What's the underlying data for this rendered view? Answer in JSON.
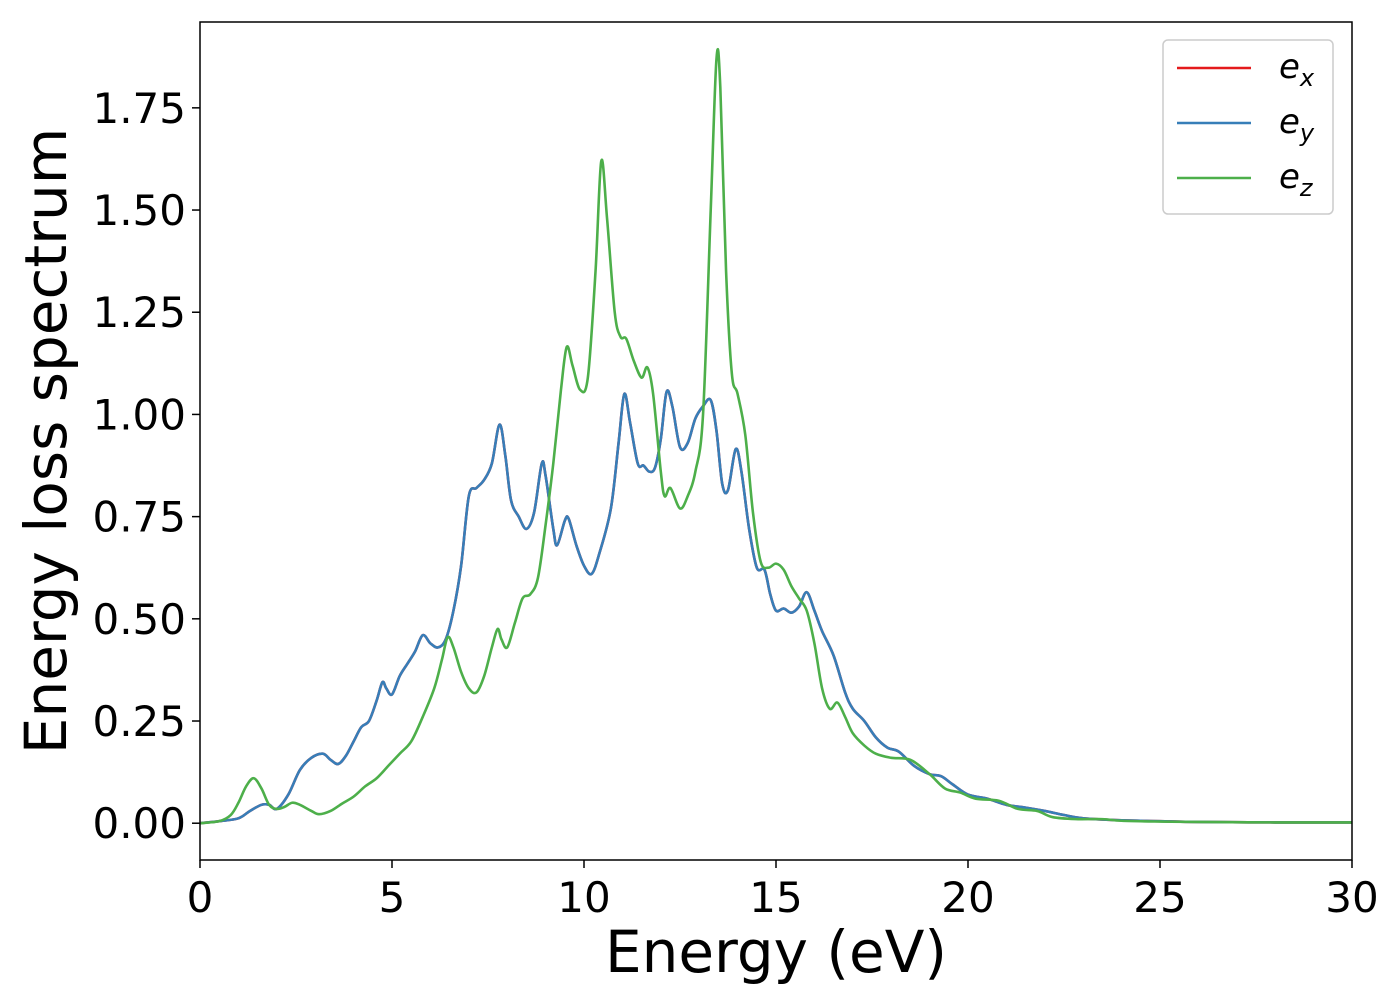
{
  "chart_data": {
    "type": "line",
    "title": "",
    "xlabel": "Energy (eV)",
    "ylabel": "Energy loss spectrum",
    "xlim": [
      0,
      30
    ],
    "ylim": [
      -0.09,
      1.96
    ],
    "xticks": [
      0,
      5,
      10,
      15,
      20,
      25,
      30
    ],
    "xtick_labels": [
      "0",
      "5",
      "10",
      "15",
      "20",
      "25",
      "30"
    ],
    "yticks": [
      0.0,
      0.25,
      0.5,
      0.75,
      1.0,
      1.25,
      1.5,
      1.75
    ],
    "ytick_labels": [
      "0.00",
      "0.25",
      "0.50",
      "0.75",
      "1.00",
      "1.25",
      "1.50",
      "1.75"
    ],
    "grid": false,
    "legend_position": "top-right",
    "series": [
      {
        "name": "e_x",
        "label_base": "e",
        "label_sub": "x",
        "color": "#e41a1c",
        "points": [
          [
            0,
            0
          ],
          [
            0.5,
            0.005
          ],
          [
            1.0,
            0.012
          ],
          [
            1.3,
            0.03
          ],
          [
            1.6,
            0.045
          ],
          [
            1.8,
            0.045
          ],
          [
            2.0,
            0.035
          ],
          [
            2.3,
            0.07
          ],
          [
            2.6,
            0.13
          ],
          [
            2.9,
            0.16
          ],
          [
            3.2,
            0.17
          ],
          [
            3.4,
            0.155
          ],
          [
            3.6,
            0.145
          ],
          [
            3.8,
            0.165
          ],
          [
            4.0,
            0.2
          ],
          [
            4.2,
            0.235
          ],
          [
            4.4,
            0.25
          ],
          [
            4.6,
            0.3
          ],
          [
            4.75,
            0.345
          ],
          [
            4.85,
            0.33
          ],
          [
            5.0,
            0.315
          ],
          [
            5.2,
            0.36
          ],
          [
            5.4,
            0.39
          ],
          [
            5.6,
            0.42
          ],
          [
            5.8,
            0.46
          ],
          [
            6.0,
            0.44
          ],
          [
            6.2,
            0.43
          ],
          [
            6.4,
            0.45
          ],
          [
            6.6,
            0.52
          ],
          [
            6.8,
            0.63
          ],
          [
            7.0,
            0.8
          ],
          [
            7.2,
            0.82
          ],
          [
            7.4,
            0.84
          ],
          [
            7.6,
            0.88
          ],
          [
            7.8,
            0.975
          ],
          [
            7.95,
            0.9
          ],
          [
            8.1,
            0.79
          ],
          [
            8.3,
            0.75
          ],
          [
            8.5,
            0.72
          ],
          [
            8.7,
            0.76
          ],
          [
            8.9,
            0.88
          ],
          [
            9.0,
            0.85
          ],
          [
            9.2,
            0.72
          ],
          [
            9.3,
            0.68
          ],
          [
            9.5,
            0.74
          ],
          [
            9.6,
            0.745
          ],
          [
            9.8,
            0.68
          ],
          [
            10.0,
            0.63
          ],
          [
            10.2,
            0.61
          ],
          [
            10.4,
            0.66
          ],
          [
            10.7,
            0.77
          ],
          [
            10.9,
            0.93
          ],
          [
            11.05,
            1.05
          ],
          [
            11.2,
            0.98
          ],
          [
            11.4,
            0.88
          ],
          [
            11.55,
            0.875
          ],
          [
            11.7,
            0.86
          ],
          [
            11.85,
            0.87
          ],
          [
            12.0,
            0.94
          ],
          [
            12.15,
            1.055
          ],
          [
            12.3,
            1.02
          ],
          [
            12.5,
            0.92
          ],
          [
            12.7,
            0.93
          ],
          [
            12.9,
            0.99
          ],
          [
            13.1,
            1.02
          ],
          [
            13.3,
            1.035
          ],
          [
            13.45,
            0.96
          ],
          [
            13.6,
            0.83
          ],
          [
            13.75,
            0.815
          ],
          [
            13.95,
            0.915
          ],
          [
            14.1,
            0.86
          ],
          [
            14.3,
            0.72
          ],
          [
            14.5,
            0.625
          ],
          [
            14.7,
            0.62
          ],
          [
            14.85,
            0.56
          ],
          [
            15.0,
            0.52
          ],
          [
            15.2,
            0.525
          ],
          [
            15.4,
            0.515
          ],
          [
            15.6,
            0.53
          ],
          [
            15.8,
            0.565
          ],
          [
            16.0,
            0.52
          ],
          [
            16.2,
            0.47
          ],
          [
            16.5,
            0.41
          ],
          [
            16.8,
            0.32
          ],
          [
            17.0,
            0.28
          ],
          [
            17.3,
            0.25
          ],
          [
            17.6,
            0.21
          ],
          [
            17.9,
            0.185
          ],
          [
            18.2,
            0.175
          ],
          [
            18.6,
            0.14
          ],
          [
            19.0,
            0.12
          ],
          [
            19.3,
            0.115
          ],
          [
            19.6,
            0.095
          ],
          [
            20.0,
            0.07
          ],
          [
            20.5,
            0.06
          ],
          [
            21.0,
            0.045
          ],
          [
            21.5,
            0.038
          ],
          [
            22.0,
            0.03
          ],
          [
            22.5,
            0.02
          ],
          [
            23.0,
            0.012
          ],
          [
            24.0,
            0.007
          ],
          [
            25.0,
            0.005
          ],
          [
            26.0,
            0.003
          ],
          [
            28.0,
            0.002
          ],
          [
            30.0,
            0.002
          ]
        ]
      },
      {
        "name": "e_y",
        "label_base": "e",
        "label_sub": "y",
        "color": "#377eb8",
        "points": [
          [
            0,
            0
          ],
          [
            0.5,
            0.005
          ],
          [
            1.0,
            0.012
          ],
          [
            1.3,
            0.03
          ],
          [
            1.6,
            0.045
          ],
          [
            1.8,
            0.045
          ],
          [
            2.0,
            0.035
          ],
          [
            2.3,
            0.07
          ],
          [
            2.6,
            0.13
          ],
          [
            2.9,
            0.16
          ],
          [
            3.2,
            0.17
          ],
          [
            3.4,
            0.155
          ],
          [
            3.6,
            0.145
          ],
          [
            3.8,
            0.165
          ],
          [
            4.0,
            0.2
          ],
          [
            4.2,
            0.235
          ],
          [
            4.4,
            0.25
          ],
          [
            4.6,
            0.3
          ],
          [
            4.75,
            0.345
          ],
          [
            4.85,
            0.33
          ],
          [
            5.0,
            0.315
          ],
          [
            5.2,
            0.36
          ],
          [
            5.4,
            0.39
          ],
          [
            5.6,
            0.42
          ],
          [
            5.8,
            0.46
          ],
          [
            6.0,
            0.44
          ],
          [
            6.2,
            0.43
          ],
          [
            6.4,
            0.45
          ],
          [
            6.6,
            0.52
          ],
          [
            6.8,
            0.63
          ],
          [
            7.0,
            0.8
          ],
          [
            7.2,
            0.82
          ],
          [
            7.4,
            0.84
          ],
          [
            7.6,
            0.88
          ],
          [
            7.8,
            0.975
          ],
          [
            7.95,
            0.9
          ],
          [
            8.1,
            0.79
          ],
          [
            8.3,
            0.75
          ],
          [
            8.5,
            0.72
          ],
          [
            8.7,
            0.76
          ],
          [
            8.9,
            0.88
          ],
          [
            9.0,
            0.85
          ],
          [
            9.2,
            0.72
          ],
          [
            9.3,
            0.68
          ],
          [
            9.5,
            0.74
          ],
          [
            9.6,
            0.745
          ],
          [
            9.8,
            0.68
          ],
          [
            10.0,
            0.63
          ],
          [
            10.2,
            0.61
          ],
          [
            10.4,
            0.66
          ],
          [
            10.7,
            0.77
          ],
          [
            10.9,
            0.93
          ],
          [
            11.05,
            1.05
          ],
          [
            11.2,
            0.98
          ],
          [
            11.4,
            0.88
          ],
          [
            11.55,
            0.875
          ],
          [
            11.7,
            0.86
          ],
          [
            11.85,
            0.87
          ],
          [
            12.0,
            0.94
          ],
          [
            12.15,
            1.055
          ],
          [
            12.3,
            1.02
          ],
          [
            12.5,
            0.92
          ],
          [
            12.7,
            0.93
          ],
          [
            12.9,
            0.99
          ],
          [
            13.1,
            1.02
          ],
          [
            13.3,
            1.035
          ],
          [
            13.45,
            0.96
          ],
          [
            13.6,
            0.83
          ],
          [
            13.75,
            0.815
          ],
          [
            13.95,
            0.915
          ],
          [
            14.1,
            0.86
          ],
          [
            14.3,
            0.72
          ],
          [
            14.5,
            0.625
          ],
          [
            14.7,
            0.62
          ],
          [
            14.85,
            0.56
          ],
          [
            15.0,
            0.52
          ],
          [
            15.2,
            0.525
          ],
          [
            15.4,
            0.515
          ],
          [
            15.6,
            0.53
          ],
          [
            15.8,
            0.565
          ],
          [
            16.0,
            0.52
          ],
          [
            16.2,
            0.47
          ],
          [
            16.5,
            0.41
          ],
          [
            16.8,
            0.32
          ],
          [
            17.0,
            0.28
          ],
          [
            17.3,
            0.25
          ],
          [
            17.6,
            0.21
          ],
          [
            17.9,
            0.185
          ],
          [
            18.2,
            0.175
          ],
          [
            18.6,
            0.14
          ],
          [
            19.0,
            0.12
          ],
          [
            19.3,
            0.115
          ],
          [
            19.6,
            0.095
          ],
          [
            20.0,
            0.07
          ],
          [
            20.5,
            0.06
          ],
          [
            21.0,
            0.045
          ],
          [
            21.5,
            0.038
          ],
          [
            22.0,
            0.03
          ],
          [
            22.5,
            0.02
          ],
          [
            23.0,
            0.012
          ],
          [
            24.0,
            0.007
          ],
          [
            25.0,
            0.005
          ],
          [
            26.0,
            0.003
          ],
          [
            28.0,
            0.002
          ],
          [
            30.0,
            0.002
          ]
        ]
      },
      {
        "name": "e_z",
        "label_base": "e",
        "label_sub": "z",
        "color": "#4daf4a",
        "points": [
          [
            0,
            0
          ],
          [
            0.5,
            0.005
          ],
          [
            0.8,
            0.02
          ],
          [
            1.0,
            0.05
          ],
          [
            1.2,
            0.09
          ],
          [
            1.4,
            0.11
          ],
          [
            1.6,
            0.085
          ],
          [
            1.8,
            0.045
          ],
          [
            2.0,
            0.035
          ],
          [
            2.2,
            0.04
          ],
          [
            2.4,
            0.05
          ],
          [
            2.6,
            0.045
          ],
          [
            2.9,
            0.03
          ],
          [
            3.1,
            0.022
          ],
          [
            3.4,
            0.03
          ],
          [
            3.7,
            0.048
          ],
          [
            4.0,
            0.065
          ],
          [
            4.3,
            0.09
          ],
          [
            4.6,
            0.11
          ],
          [
            4.9,
            0.14
          ],
          [
            5.2,
            0.17
          ],
          [
            5.5,
            0.2
          ],
          [
            5.8,
            0.26
          ],
          [
            6.1,
            0.33
          ],
          [
            6.3,
            0.4
          ],
          [
            6.45,
            0.455
          ],
          [
            6.6,
            0.43
          ],
          [
            6.8,
            0.37
          ],
          [
            7.0,
            0.33
          ],
          [
            7.2,
            0.32
          ],
          [
            7.4,
            0.36
          ],
          [
            7.6,
            0.43
          ],
          [
            7.75,
            0.475
          ],
          [
            7.85,
            0.45
          ],
          [
            8.0,
            0.43
          ],
          [
            8.2,
            0.49
          ],
          [
            8.4,
            0.55
          ],
          [
            8.6,
            0.56
          ],
          [
            8.8,
            0.6
          ],
          [
            9.0,
            0.73
          ],
          [
            9.2,
            0.88
          ],
          [
            9.4,
            1.06
          ],
          [
            9.55,
            1.165
          ],
          [
            9.7,
            1.12
          ],
          [
            9.9,
            1.06
          ],
          [
            10.1,
            1.09
          ],
          [
            10.3,
            1.35
          ],
          [
            10.45,
            1.62
          ],
          [
            10.6,
            1.48
          ],
          [
            10.8,
            1.25
          ],
          [
            10.95,
            1.19
          ],
          [
            11.1,
            1.185
          ],
          [
            11.3,
            1.13
          ],
          [
            11.5,
            1.09
          ],
          [
            11.65,
            1.115
          ],
          [
            11.8,
            1.05
          ],
          [
            12.0,
            0.86
          ],
          [
            12.1,
            0.8
          ],
          [
            12.25,
            0.82
          ],
          [
            12.5,
            0.77
          ],
          [
            12.7,
            0.8
          ],
          [
            12.9,
            0.86
          ],
          [
            13.1,
            1.0
          ],
          [
            13.3,
            1.5
          ],
          [
            13.45,
            1.87
          ],
          [
            13.55,
            1.8
          ],
          [
            13.7,
            1.35
          ],
          [
            13.85,
            1.1
          ],
          [
            14.0,
            1.05
          ],
          [
            14.2,
            0.95
          ],
          [
            14.4,
            0.76
          ],
          [
            14.6,
            0.64
          ],
          [
            14.8,
            0.625
          ],
          [
            15.0,
            0.635
          ],
          [
            15.2,
            0.62
          ],
          [
            15.4,
            0.58
          ],
          [
            15.6,
            0.55
          ],
          [
            15.8,
            0.52
          ],
          [
            16.0,
            0.44
          ],
          [
            16.2,
            0.33
          ],
          [
            16.4,
            0.28
          ],
          [
            16.6,
            0.295
          ],
          [
            16.8,
            0.26
          ],
          [
            17.0,
            0.22
          ],
          [
            17.3,
            0.19
          ],
          [
            17.6,
            0.17
          ],
          [
            18.0,
            0.16
          ],
          [
            18.5,
            0.155
          ],
          [
            19.0,
            0.12
          ],
          [
            19.4,
            0.085
          ],
          [
            19.8,
            0.075
          ],
          [
            20.2,
            0.06
          ],
          [
            20.8,
            0.055
          ],
          [
            21.3,
            0.035
          ],
          [
            21.8,
            0.03
          ],
          [
            22.2,
            0.015
          ],
          [
            22.8,
            0.01
          ],
          [
            23.5,
            0.01
          ],
          [
            24.0,
            0.006
          ],
          [
            25.0,
            0.004
          ],
          [
            26.0,
            0.003
          ],
          [
            28.0,
            0.002
          ],
          [
            30.0,
            0.002
          ]
        ]
      }
    ]
  }
}
